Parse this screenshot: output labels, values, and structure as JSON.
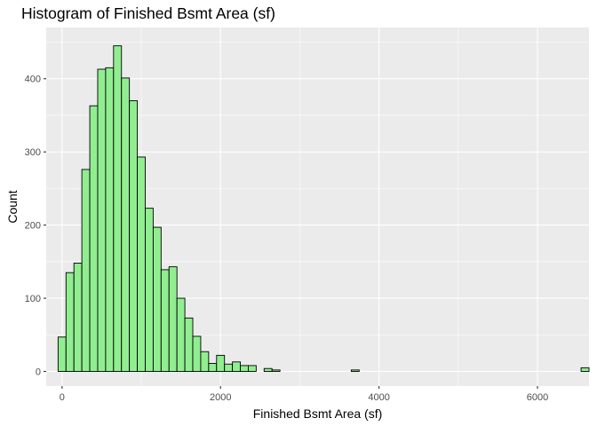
{
  "chart_data": {
    "type": "bar",
    "title": "Histogram of Finished Bsmt Area (sf)",
    "xlabel": "Finished Bsmt Area (sf)",
    "ylabel": "Count",
    "xlim": [
      -200,
      6650
    ],
    "ylim": [
      -20,
      470
    ],
    "x_ticks": [
      0,
      2000,
      4000,
      6000
    ],
    "x_tick_labels": [
      "0",
      "2000",
      "4000",
      "6000"
    ],
    "y_ticks": [
      0,
      100,
      200,
      300,
      400
    ],
    "y_tick_labels": [
      "0",
      "100",
      "200",
      "300",
      "400"
    ],
    "bin_width": 100,
    "bin_start": -50,
    "counts": [
      47,
      135,
      148,
      276,
      363,
      413,
      415,
      445,
      401,
      370,
      293,
      223,
      197,
      139,
      143,
      100,
      73,
      48,
      27,
      11,
      22,
      10,
      13,
      8,
      8,
      0,
      4,
      2,
      0,
      0,
      0,
      0,
      0,
      0,
      0,
      0,
      0,
      2,
      0,
      0,
      0,
      0,
      0,
      0,
      0,
      0,
      0,
      0,
      0,
      0,
      0,
      0,
      0,
      0,
      0,
      0,
      0,
      0,
      0,
      0,
      0,
      0,
      0,
      0,
      0,
      0,
      5
    ],
    "bar_fill": "#90ee90",
    "bar_outline": "#000000",
    "panel_background": "#ebebeb",
    "grid": true
  }
}
